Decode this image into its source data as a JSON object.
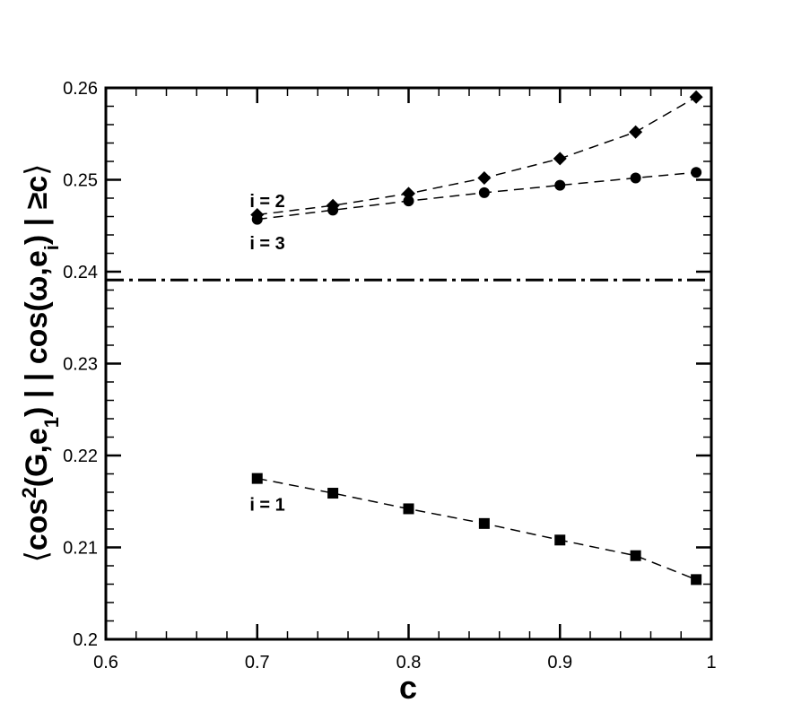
{
  "chart_data": {
    "type": "scatter",
    "xlabel": "c",
    "ylabel": {
      "open": "⟨",
      "cos": "cos",
      "sup2": "2",
      "g": "(G,e",
      "sub1": "1",
      "rest": ") | | cos(ω,e",
      "subi": "i",
      "tail": ") | ≥c",
      "close": "⟩"
    },
    "xlim": [
      0.6,
      1.0
    ],
    "ylim": [
      0.2,
      0.26
    ],
    "x_ticks": [
      0.6,
      0.7,
      0.8,
      0.9,
      1.0
    ],
    "x_tick_labels": [
      "0.6",
      "0.7",
      "0.8",
      "0.9",
      "1"
    ],
    "y_ticks": [
      0.2,
      0.21,
      0.22,
      0.23,
      0.24,
      0.25,
      0.26
    ],
    "y_tick_labels": [
      "0.2",
      "0.21",
      "0.22",
      "0.23",
      "0.24",
      "0.25",
      "0.26"
    ],
    "grid": false,
    "series": [
      {
        "label": "i = 2",
        "marker": "diamond",
        "line": "dashed",
        "x": [
          0.7,
          0.75,
          0.8,
          0.85,
          0.9,
          0.95,
          0.99
        ],
        "y": [
          0.2462,
          0.2472,
          0.2485,
          0.2502,
          0.2523,
          0.2552,
          0.259
        ]
      },
      {
        "label": "i = 3",
        "marker": "circle",
        "line": "dashed",
        "x": [
          0.7,
          0.75,
          0.8,
          0.85,
          0.9,
          0.95,
          0.99
        ],
        "y": [
          0.2457,
          0.2467,
          0.2477,
          0.2486,
          0.2494,
          0.2502,
          0.2508
        ]
      },
      {
        "label": "i = 1",
        "marker": "square",
        "line": "dashed",
        "x": [
          0.7,
          0.75,
          0.8,
          0.85,
          0.9,
          0.95,
          0.99
        ],
        "y": [
          0.2175,
          0.2159,
          0.2142,
          0.2126,
          0.2108,
          0.2091,
          0.2065
        ]
      }
    ],
    "reference_line": {
      "y": 0.2391,
      "style": "dash-dot"
    },
    "annotations": [
      {
        "text": "i = 2",
        "x": 0.695,
        "y": 0.2477
      },
      {
        "text": "i = 3",
        "x": 0.695,
        "y": 0.2431
      },
      {
        "text": "i = 1",
        "x": 0.695,
        "y": 0.2147
      }
    ]
  }
}
